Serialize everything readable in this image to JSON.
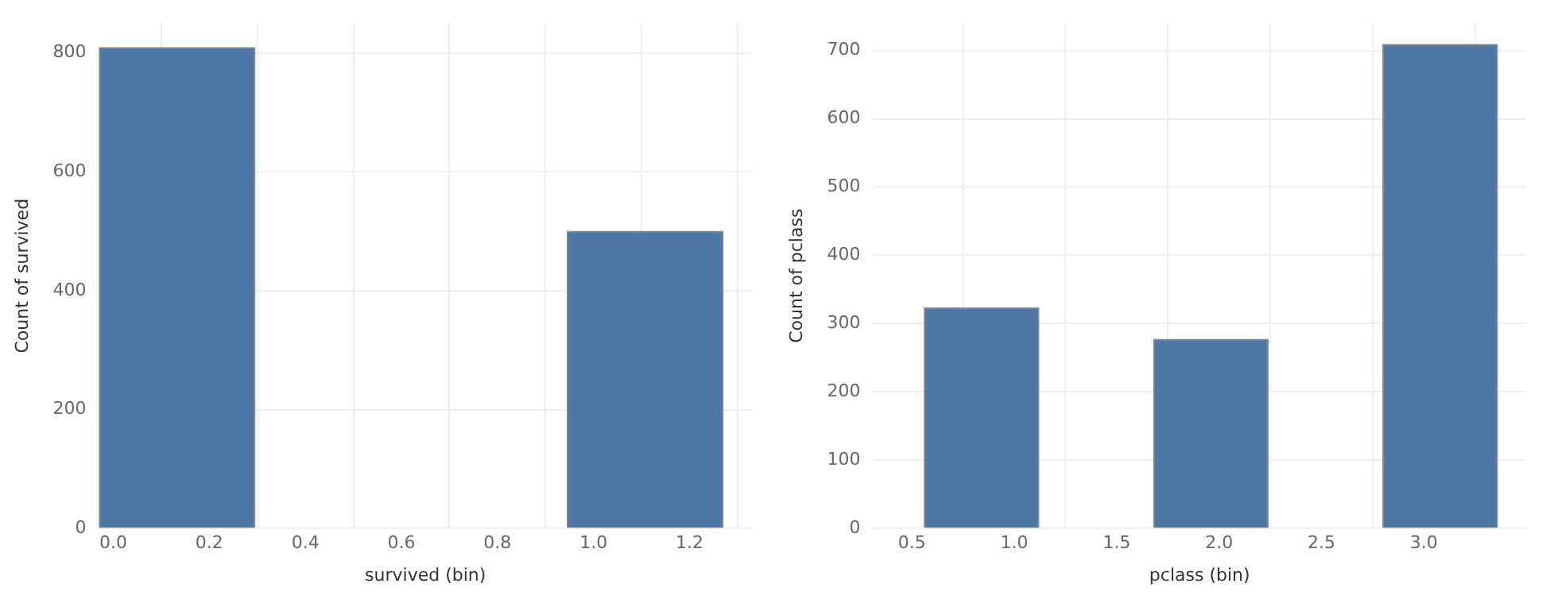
{
  "chart_data": [
    {
      "type": "histogram",
      "xlabel": "survived (bin)",
      "ylabel": "Count of survived",
      "bins": [
        -0.03,
        0.295,
        0.62,
        0.945,
        1.27
      ],
      "values": [
        809,
        0,
        0,
        500
      ],
      "color": "#4e79a7",
      "xlim": [
        -0.03,
        1.33
      ],
      "ylim": [
        0,
        850
      ],
      "xticks": [
        {
          "value": 0,
          "label": "0.0"
        },
        0.2,
        0.4,
        0.6,
        0.8,
        {
          "value": 1,
          "label": "1.0"
        },
        1.2
      ],
      "yticks": [
        0,
        200,
        400,
        600,
        800
      ],
      "grid": true,
      "legend": false
    },
    {
      "type": "histogram",
      "xlabel": "pclass (bin)",
      "ylabel": "Count of pclass",
      "bins": [
        0.56,
        1.12,
        1.68,
        2.24,
        2.8,
        3.36
      ],
      "values": [
        323,
        0,
        277,
        0,
        709
      ],
      "color": "#4e79a7",
      "xlim": [
        0.31,
        3.5
      ],
      "ylim": [
        0,
        740
      ],
      "xticks": [
        0.5,
        {
          "value": 1,
          "label": "1.0"
        },
        1.5,
        {
          "value": 2,
          "label": "2.0"
        },
        2.5,
        {
          "value": 3,
          "label": "3.0"
        }
      ],
      "yticks": [
        0,
        100,
        200,
        300,
        400,
        500,
        600,
        700
      ],
      "grid": true,
      "legend": false
    }
  ]
}
